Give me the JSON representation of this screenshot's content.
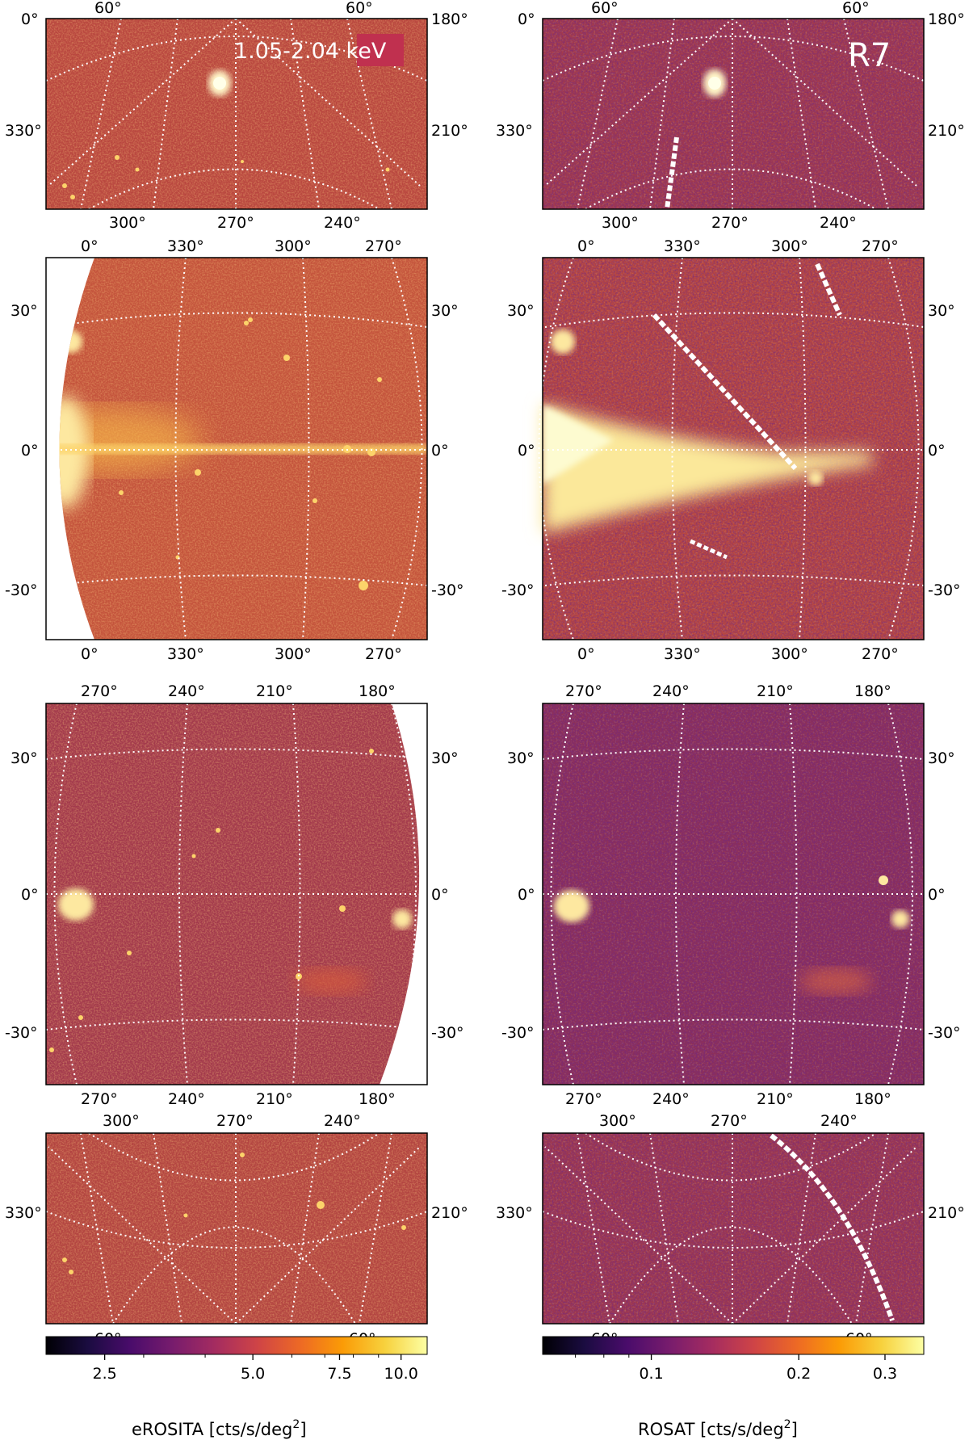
{
  "figure": {
    "band_label": "1.05-2.04 keV",
    "band_label_bg": "#c0304f",
    "roi_label": "R7",
    "grid_color": "#ffffff",
    "missing_color": "#ffffff"
  },
  "colorbars": {
    "left": {
      "title": "eROSITA [cts/s/deg",
      "title_sup": "2",
      "title_end": "]",
      "min": 1.9,
      "max": 11.3,
      "scale": "log",
      "ticks": [
        {
          "value": 2.5,
          "label": "2.5"
        },
        {
          "value": 5.0,
          "label": "5.0"
        },
        {
          "value": 7.5,
          "label": "7.5"
        },
        {
          "value": 10.0,
          "label": "10.0"
        }
      ],
      "minor_ticks": [
        3.0,
        4.0,
        6.0,
        7.0,
        8.0,
        9.0
      ]
    },
    "right": {
      "title": "ROSAT [cts/s/deg",
      "title_sup": "2",
      "title_end": "]",
      "min": 0.06,
      "max": 0.36,
      "scale": "log",
      "ticks": [
        {
          "value": 0.1,
          "label": "0.1"
        },
        {
          "value": 0.2,
          "label": "0.2"
        },
        {
          "value": 0.3,
          "label": "0.3"
        }
      ],
      "minor_ticks": [
        0.07,
        0.08,
        0.09
      ]
    },
    "colormap": [
      "#000004",
      "#1b0c41",
      "#4a0c6b",
      "#781c6d",
      "#a52c60",
      "#cf4446",
      "#ed6925",
      "#fb9b06",
      "#f7d13d",
      "#fcffa4"
    ]
  },
  "chart_data": [
    {
      "type": "heatmap",
      "panel": "row1-eROSITA",
      "top_ticks": [
        "60°",
        "60°"
      ],
      "right_ticks": [
        "180°",
        "210°"
      ],
      "left_ticks": [
        "0°",
        "330°"
      ],
      "bottom_ticks": [
        "300°",
        "270°",
        "240°"
      ],
      "annotation": "1.05-2.04 keV"
    },
    {
      "type": "heatmap",
      "panel": "row1-ROSAT",
      "top_ticks": [
        "60°",
        "60°"
      ],
      "right_ticks": [
        "180°",
        "210°"
      ],
      "left_ticks": [
        "0°",
        "330°"
      ],
      "bottom_ticks": [
        "300°",
        "270°",
        "240°"
      ],
      "annotation": "R7"
    },
    {
      "type": "heatmap",
      "panel": "row2-eROSITA",
      "top_ticks": [
        "0°",
        "330°",
        "300°",
        "270°"
      ],
      "bottom_ticks": [
        "0°",
        "330°",
        "300°",
        "270°"
      ],
      "left_ticks": [
        "30°",
        "0°",
        "-30°"
      ],
      "right_ticks": [
        "30°",
        "0°",
        "-30°"
      ]
    },
    {
      "type": "heatmap",
      "panel": "row2-ROSAT",
      "top_ticks": [
        "0°",
        "330°",
        "300°",
        "270°"
      ],
      "bottom_ticks": [
        "0°",
        "330°",
        "300°",
        "270°"
      ],
      "left_ticks": [
        "30°",
        "0°",
        "-30°"
      ],
      "right_ticks": [
        "30°",
        "0°",
        "-30°"
      ]
    },
    {
      "type": "heatmap",
      "panel": "row3-eROSITA",
      "top_ticks": [
        "270°",
        "240°",
        "210°",
        "180°"
      ],
      "bottom_ticks": [
        "270°",
        "240°",
        "210°",
        "180°"
      ],
      "left_ticks": [
        "30°",
        "0°",
        "-30°"
      ],
      "right_ticks": [
        "30°",
        "0°",
        "-30°"
      ]
    },
    {
      "type": "heatmap",
      "panel": "row3-ROSAT",
      "top_ticks": [
        "270°",
        "240°",
        "210°",
        "180°"
      ],
      "bottom_ticks": [
        "270°",
        "240°",
        "210°",
        "180°"
      ],
      "left_ticks": [
        "30°",
        "0°",
        "-30°"
      ],
      "right_ticks": [
        "30°",
        "0°",
        "-30°"
      ]
    },
    {
      "type": "heatmap",
      "panel": "row4-eROSITA",
      "top_ticks": [
        "300°",
        "270°",
        "240°"
      ],
      "left_ticks": [
        "330°"
      ],
      "right_ticks": [
        "210°"
      ],
      "bottom_ticks": [
        "-60°",
        "-60°"
      ]
    },
    {
      "type": "heatmap",
      "panel": "row4-ROSAT",
      "top_ticks": [
        "300°",
        "270°",
        "240°"
      ],
      "left_ticks": [
        "330°"
      ],
      "right_ticks": [
        "210°"
      ],
      "bottom_ticks": [
        "-60°",
        "-60°"
      ]
    }
  ]
}
